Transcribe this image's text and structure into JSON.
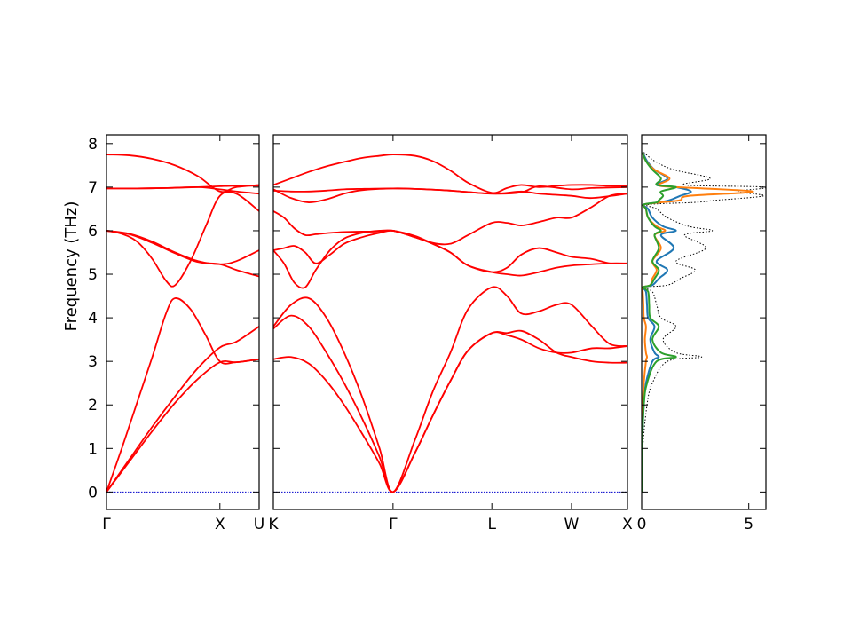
{
  "chart_data": [
    {
      "type": "line",
      "panel": "band-left",
      "ylabel": "Frequency (THz)",
      "ylim": [
        -0.4,
        8.2
      ],
      "xlim": [
        0,
        1
      ],
      "yticks": [
        0,
        1,
        2,
        3,
        4,
        5,
        6,
        7,
        8
      ],
      "xticks": [
        {
          "label": "Γ",
          "x": 0
        },
        {
          "label": "X",
          "x": 0.743
        },
        {
          "label": "U",
          "x": 1
        }
      ],
      "line_color": "#ff0000",
      "zero_line": {
        "y": 0,
        "color": "#0000cc"
      },
      "series": [
        {
          "x": [
            0,
            0.15,
            0.3,
            0.45,
            0.6,
            0.743,
            0.85,
            1
          ],
          "y": [
            0,
            0.75,
            1.5,
            2.2,
            2.85,
            3.32,
            3.45,
            3.8
          ]
        },
        {
          "x": [
            0,
            0.15,
            0.3,
            0.45,
            0.6,
            0.743,
            0.85,
            1
          ],
          "y": [
            0,
            0.7,
            1.4,
            2.05,
            2.6,
            2.98,
            2.98,
            3.05
          ]
        },
        {
          "x": [
            0,
            0.1,
            0.2,
            0.3,
            0.39,
            0.45,
            0.55,
            0.65,
            0.743,
            0.85,
            1
          ],
          "y": [
            0,
            1.0,
            2.05,
            3.1,
            4.1,
            4.45,
            4.2,
            3.6,
            3.0,
            2.98,
            3.05
          ]
        },
        {
          "x": [
            0,
            0.1,
            0.2,
            0.3,
            0.39,
            0.45,
            0.55,
            0.65,
            0.743,
            0.85,
            1
          ],
          "y": [
            6.0,
            5.93,
            5.75,
            5.35,
            4.85,
            4.75,
            5.3,
            6.1,
            6.8,
            6.85,
            6.45
          ]
        },
        {
          "x": [
            0,
            0.15,
            0.3,
            0.45,
            0.6,
            0.743,
            0.85,
            1
          ],
          "y": [
            6.0,
            5.93,
            5.75,
            5.5,
            5.3,
            5.23,
            5.3,
            5.55
          ]
        },
        {
          "x": [
            0,
            0.15,
            0.3,
            0.45,
            0.6,
            0.743,
            0.85,
            1
          ],
          "y": [
            6.0,
            5.92,
            5.72,
            5.48,
            5.28,
            5.23,
            5.1,
            4.95
          ]
        },
        {
          "x": [
            0,
            0.2,
            0.4,
            0.6,
            0.743,
            0.85,
            1
          ],
          "y": [
            6.97,
            6.97,
            6.98,
            7.0,
            7.02,
            7.03,
            7.03
          ]
        },
        {
          "x": [
            0,
            0.2,
            0.4,
            0.6,
            0.743,
            0.85,
            1
          ],
          "y": [
            6.97,
            6.97,
            6.98,
            7.0,
            6.95,
            6.9,
            6.85
          ]
        },
        {
          "x": [
            0,
            0.15,
            0.3,
            0.45,
            0.6,
            0.743,
            0.85,
            1
          ],
          "y": [
            7.75,
            7.73,
            7.65,
            7.5,
            7.25,
            6.9,
            7.0,
            7.05
          ]
        }
      ]
    },
    {
      "type": "line",
      "panel": "band-right",
      "ylim": [
        -0.4,
        8.2
      ],
      "xlim": [
        0,
        1
      ],
      "xticks": [
        {
          "label": "K",
          "x": 0
        },
        {
          "label": "Γ",
          "x": 0.338
        },
        {
          "label": "L",
          "x": 0.617
        },
        {
          "label": "W",
          "x": 0.842
        },
        {
          "label": "X",
          "x": 1
        }
      ],
      "line_color": "#ff0000",
      "zero_line": {
        "y": 0,
        "color": "#0000cc"
      },
      "series": [
        {
          "x": [
            0,
            0.05,
            0.1,
            0.15,
            0.2,
            0.25,
            0.3,
            0.338,
            0.4,
            0.45,
            0.5,
            0.55,
            0.617,
            0.66,
            0.7,
            0.75,
            0.8,
            0.842,
            0.9,
            0.95,
            1
          ],
          "y": [
            3.8,
            4.3,
            4.45,
            4.0,
            3.2,
            2.2,
            1.0,
            0,
            1.2,
            2.3,
            3.2,
            4.2,
            4.7,
            4.5,
            4.1,
            4.15,
            4.3,
            4.3,
            3.8,
            3.4,
            3.35
          ]
        },
        {
          "x": [
            0,
            0.05,
            0.1,
            0.15,
            0.2,
            0.25,
            0.3,
            0.338,
            0.4,
            0.45,
            0.5,
            0.55,
            0.617,
            0.66,
            0.7,
            0.75,
            0.8,
            0.842,
            0.9,
            0.95,
            1
          ],
          "y": [
            3.75,
            4.05,
            3.8,
            3.2,
            2.5,
            1.7,
            0.8,
            0,
            0.9,
            1.75,
            2.55,
            3.25,
            3.65,
            3.6,
            3.5,
            3.3,
            3.2,
            3.2,
            3.3,
            3.3,
            3.35
          ]
        },
        {
          "x": [
            0,
            0.05,
            0.1,
            0.15,
            0.2,
            0.25,
            0.3,
            0.338,
            0.4,
            0.45,
            0.5,
            0.55,
            0.617,
            0.66,
            0.7,
            0.75,
            0.8,
            0.842,
            0.9,
            0.95,
            1
          ],
          "y": [
            3.05,
            3.1,
            2.95,
            2.55,
            2.0,
            1.35,
            0.65,
            0,
            0.9,
            1.75,
            2.55,
            3.25,
            3.65,
            3.65,
            3.7,
            3.5,
            3.2,
            3.1,
            3.0,
            2.97,
            2.97
          ]
        },
        {
          "x": [
            0,
            0.03,
            0.06,
            0.09,
            0.12,
            0.16,
            0.2,
            0.25,
            0.3,
            0.338,
            0.4,
            0.45,
            0.5,
            0.55,
            0.617,
            0.66,
            0.7,
            0.75,
            0.8,
            0.842,
            0.9,
            0.95,
            1
          ],
          "y": [
            5.55,
            5.25,
            4.8,
            4.7,
            5.1,
            5.55,
            5.82,
            5.95,
            6.0,
            6.0,
            5.88,
            5.72,
            5.7,
            5.9,
            6.18,
            6.18,
            6.12,
            6.2,
            6.3,
            6.3,
            6.55,
            6.8,
            6.85
          ]
        },
        {
          "x": [
            0,
            0.03,
            0.06,
            0.09,
            0.12,
            0.16,
            0.2,
            0.25,
            0.3,
            0.338,
            0.4,
            0.45,
            0.5,
            0.55,
            0.617,
            0.66,
            0.7,
            0.75,
            0.8,
            0.842,
            0.9,
            0.95,
            1
          ],
          "y": [
            6.45,
            6.3,
            6.05,
            5.9,
            5.92,
            5.95,
            5.97,
            5.98,
            5.98,
            6.0,
            5.85,
            5.7,
            5.5,
            5.2,
            5.05,
            5.15,
            5.45,
            5.6,
            5.5,
            5.4,
            5.35,
            5.25,
            5.25
          ]
        },
        {
          "x": [
            0,
            0.03,
            0.06,
            0.09,
            0.12,
            0.16,
            0.2,
            0.25,
            0.3,
            0.338,
            0.4,
            0.45,
            0.5,
            0.55,
            0.617,
            0.66,
            0.7,
            0.75,
            0.8,
            0.842,
            0.9,
            0.95,
            1
          ],
          "y": [
            5.55,
            5.6,
            5.65,
            5.5,
            5.25,
            5.45,
            5.7,
            5.85,
            5.95,
            6.0,
            5.85,
            5.7,
            5.5,
            5.2,
            5.05,
            5.0,
            4.97,
            5.05,
            5.15,
            5.2,
            5.23,
            5.25,
            5.25
          ]
        },
        {
          "x": [
            0,
            0.05,
            0.1,
            0.15,
            0.2,
            0.25,
            0.338,
            0.4,
            0.5,
            0.617,
            0.7,
            0.75,
            0.842,
            0.9,
            1
          ],
          "y": [
            6.92,
            6.9,
            6.9,
            6.92,
            6.95,
            6.96,
            6.97,
            6.96,
            6.92,
            6.85,
            6.9,
            6.85,
            6.8,
            6.75,
            6.85
          ]
        },
        {
          "x": [
            0,
            0.05,
            0.1,
            0.15,
            0.2,
            0.25,
            0.338,
            0.4,
            0.5,
            0.617,
            0.7,
            0.75,
            0.842,
            0.9,
            1
          ],
          "y": [
            6.95,
            6.75,
            6.65,
            6.72,
            6.85,
            6.93,
            6.97,
            6.96,
            6.92,
            6.85,
            6.88,
            7.02,
            6.95,
            6.98,
            7.0
          ]
        },
        {
          "x": [
            0,
            0.05,
            0.1,
            0.15,
            0.2,
            0.25,
            0.3,
            0.338,
            0.4,
            0.45,
            0.5,
            0.55,
            0.617,
            0.66,
            0.7,
            0.75,
            0.8,
            0.842,
            0.9,
            0.95,
            1
          ],
          "y": [
            7.05,
            7.2,
            7.35,
            7.48,
            7.58,
            7.67,
            7.72,
            7.75,
            7.72,
            7.6,
            7.38,
            7.1,
            6.87,
            6.98,
            7.05,
            7.0,
            7.03,
            7.05,
            7.05,
            7.03,
            7.03
          ]
        }
      ]
    },
    {
      "type": "line",
      "panel": "dos",
      "xlim": [
        0,
        5.8
      ],
      "ylim": [
        -0.4,
        8.2
      ],
      "xticks": [
        {
          "label": "0",
          "x": 0
        },
        {
          "label": "5",
          "x": 5
        }
      ],
      "series": [
        {
          "color": "#000000",
          "style": "dotted",
          "y": [
            0,
            1,
            2,
            2.5,
            3,
            3.1,
            3.2,
            3.5,
            3.8,
            4.0,
            4.3,
            4.6,
            4.7,
            4.75,
            4.9,
            5.1,
            5.3,
            5.6,
            5.9,
            6.0,
            6.1,
            6.3,
            6.5,
            6.6,
            6.65,
            6.7,
            6.8,
            6.9,
            7.0,
            7.05,
            7.2,
            7.4,
            7.6,
            7.8
          ],
          "x": [
            0,
            0.05,
            0.25,
            0.5,
            1.2,
            2.8,
            1.6,
            1.0,
            1.6,
            0.9,
            0.7,
            0.5,
            0.1,
            1.2,
            1.8,
            2.5,
            1.6,
            3.0,
            2.0,
            3.3,
            2.2,
            1.2,
            0.7,
            0.3,
            2.5,
            3.5,
            5.7,
            4.5,
            5.8,
            2.0,
            3.2,
            1.5,
            0.6,
            0.1
          ]
        },
        {
          "color": "#1f77b4",
          "style": "solid",
          "y": [
            0,
            1,
            2,
            2.5,
            3,
            3.1,
            3.2,
            3.5,
            3.8,
            4.0,
            4.3,
            4.6,
            4.7,
            4.75,
            4.9,
            5.1,
            5.3,
            5.6,
            5.9,
            6.0,
            6.1,
            6.3,
            6.5,
            6.6,
            6.65,
            6.7,
            6.8,
            6.9,
            7.0,
            7.05,
            7.2,
            7.4,
            7.6,
            7.8
          ],
          "x": [
            0,
            0.02,
            0.1,
            0.2,
            0.5,
            0.8,
            0.6,
            0.4,
            0.6,
            0.3,
            0.25,
            0.2,
            0.05,
            0.5,
            0.8,
            1.2,
            0.7,
            1.5,
            0.9,
            1.6,
            1.0,
            0.5,
            0.3,
            0.1,
            0.8,
            1.3,
            1.8,
            2.3,
            1.6,
            0.7,
            1.2,
            0.6,
            0.25,
            0.05
          ]
        },
        {
          "color": "#ff7f0e",
          "style": "solid",
          "y": [
            0,
            1,
            2,
            2.5,
            3,
            3.1,
            3.2,
            3.5,
            3.8,
            4.0,
            4.3,
            4.6,
            4.7,
            4.75,
            4.9,
            5.1,
            5.3,
            5.6,
            5.9,
            6.0,
            6.1,
            6.3,
            6.5,
            6.6,
            6.65,
            6.7,
            6.8,
            6.9,
            7.0,
            7.05,
            7.2,
            7.4,
            7.6,
            7.8
          ],
          "x": [
            0,
            0.01,
            0.05,
            0.1,
            0.2,
            0.25,
            0.2,
            0.15,
            0.2,
            0.1,
            0.08,
            0.05,
            0.02,
            0.4,
            0.5,
            0.7,
            0.5,
            0.9,
            0.6,
            1.1,
            0.7,
            0.3,
            0.2,
            0.1,
            0.9,
            1.8,
            2.2,
            5.2,
            1.6,
            0.8,
            1.3,
            0.6,
            0.2,
            0.04
          ]
        },
        {
          "color": "#2ca02c",
          "style": "solid",
          "y": [
            0,
            1,
            2,
            2.5,
            3,
            3.1,
            3.2,
            3.5,
            3.8,
            4.0,
            4.3,
            4.6,
            4.7,
            4.75,
            4.9,
            5.1,
            5.3,
            5.6,
            5.9,
            6.0,
            6.1,
            6.3,
            6.5,
            6.6,
            6.65,
            6.7,
            6.8,
            6.9,
            7.0,
            7.05,
            7.2,
            7.4,
            7.6,
            7.8
          ],
          "x": [
            0,
            0.02,
            0.1,
            0.25,
            0.7,
            1.6,
            0.9,
            0.5,
            0.8,
            0.4,
            0.35,
            0.3,
            0.05,
            0.4,
            0.6,
            0.8,
            0.5,
            0.8,
            0.6,
            0.9,
            0.6,
            0.3,
            0.2,
            0.08,
            0.7,
            0.8,
            1.0,
            0.9,
            1.6,
            0.7,
            0.9,
            0.5,
            0.2,
            0.03
          ]
        }
      ]
    }
  ]
}
